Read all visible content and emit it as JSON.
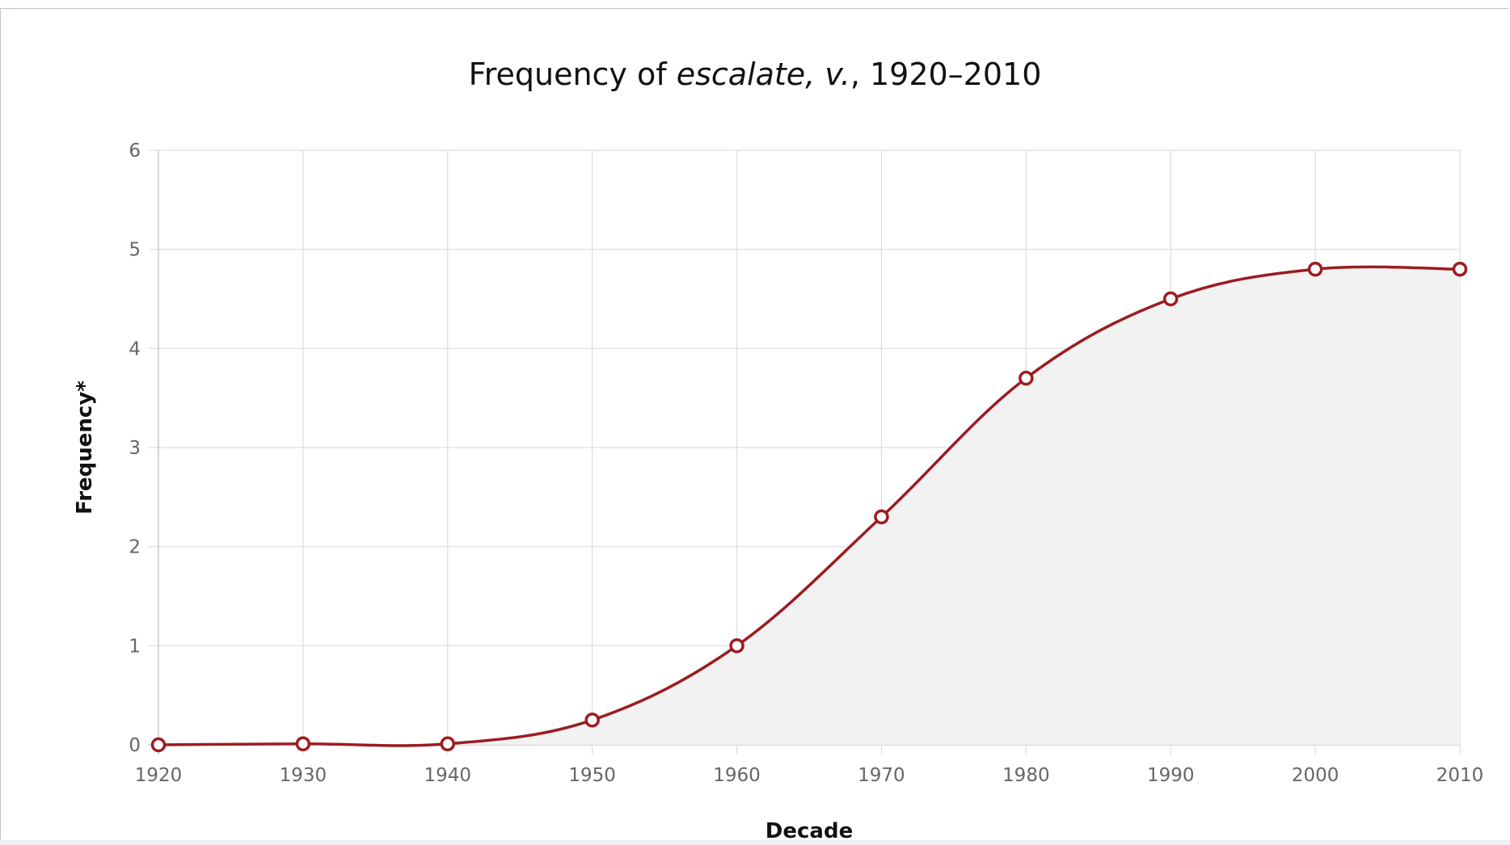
{
  "chart_data": {
    "type": "area",
    "title": {
      "prefix": "Frequency of ",
      "word": "escalate, v.",
      "suffix": ", 1920–2010"
    },
    "xlabel": "Decade",
    "ylabel": "Frequency*",
    "x": [
      1920,
      1930,
      1940,
      1950,
      1960,
      1970,
      1980,
      1990,
      2000,
      2010
    ],
    "y": [
      0,
      0.01,
      0.01,
      0.25,
      1.0,
      2.3,
      3.7,
      4.5,
      4.8,
      4.8
    ],
    "x_ticks": [
      "1920",
      "1930",
      "1940",
      "1950",
      "1960",
      "1970",
      "1980",
      "1990",
      "2000",
      "2010"
    ],
    "y_ticks": [
      "0",
      "1",
      "2",
      "3",
      "4",
      "5",
      "6"
    ],
    "ylim": [
      0,
      6
    ],
    "grid": true,
    "legend": "none",
    "colors": {
      "line": "#9b1c22",
      "fill": "#f2f2f2",
      "marker_fill": "#ffffff",
      "grid": "#dcdcdc",
      "axis": "#bbbbbb"
    }
  }
}
